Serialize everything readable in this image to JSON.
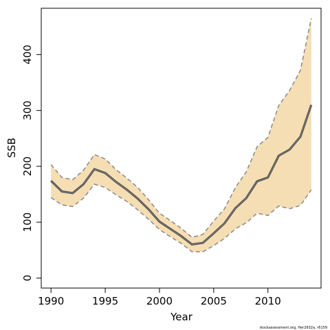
{
  "chart_data": {
    "type": "line",
    "title": "",
    "xlabel": "Year",
    "ylabel": "SSB",
    "xlim": [
      1989.1,
      2014.9
    ],
    "ylim": [
      -18,
      483
    ],
    "x_ticks": [
      1990,
      1995,
      2000,
      2005,
      2010
    ],
    "y_ticks": [
      0,
      100,
      200,
      300,
      400
    ],
    "grid": false,
    "legend": "none",
    "x": [
      1990,
      1991,
      1992,
      1993,
      1994,
      1995,
      1996,
      1997,
      1998,
      1999,
      2000,
      2001,
      2002,
      2003,
      2004,
      2005,
      2006,
      2007,
      2008,
      2009,
      2010,
      2011,
      2012,
      2013,
      2014
    ],
    "series": [
      {
        "role": "estimate",
        "color": "#444444",
        "values": [
          174,
          155,
          152,
          168,
          195,
          188,
          172,
          158,
          142,
          123,
          101,
          88,
          75,
          60,
          63,
          80,
          98,
          125,
          143,
          173,
          180,
          219,
          230,
          253,
          310
        ]
      },
      {
        "role": "upper",
        "color": "#888888",
        "values": [
          203,
          180,
          176,
          193,
          221,
          213,
          194,
          179,
          162,
          140,
          116,
          103,
          89,
          73,
          78,
          102,
          124,
          162,
          190,
          235,
          252,
          309,
          336,
          372,
          465
        ]
      },
      {
        "role": "lower",
        "color": "#888888",
        "values": [
          144,
          131,
          128,
          143,
          168,
          162,
          149,
          137,
          122,
          105,
          87,
          74,
          62,
          47,
          47,
          58,
          71,
          88,
          99,
          116,
          112,
          129,
          124,
          130,
          158
        ]
      }
    ],
    "band_color": "#f5deb3",
    "annotation": "stockassessment.org, Her2932a, r6159"
  }
}
